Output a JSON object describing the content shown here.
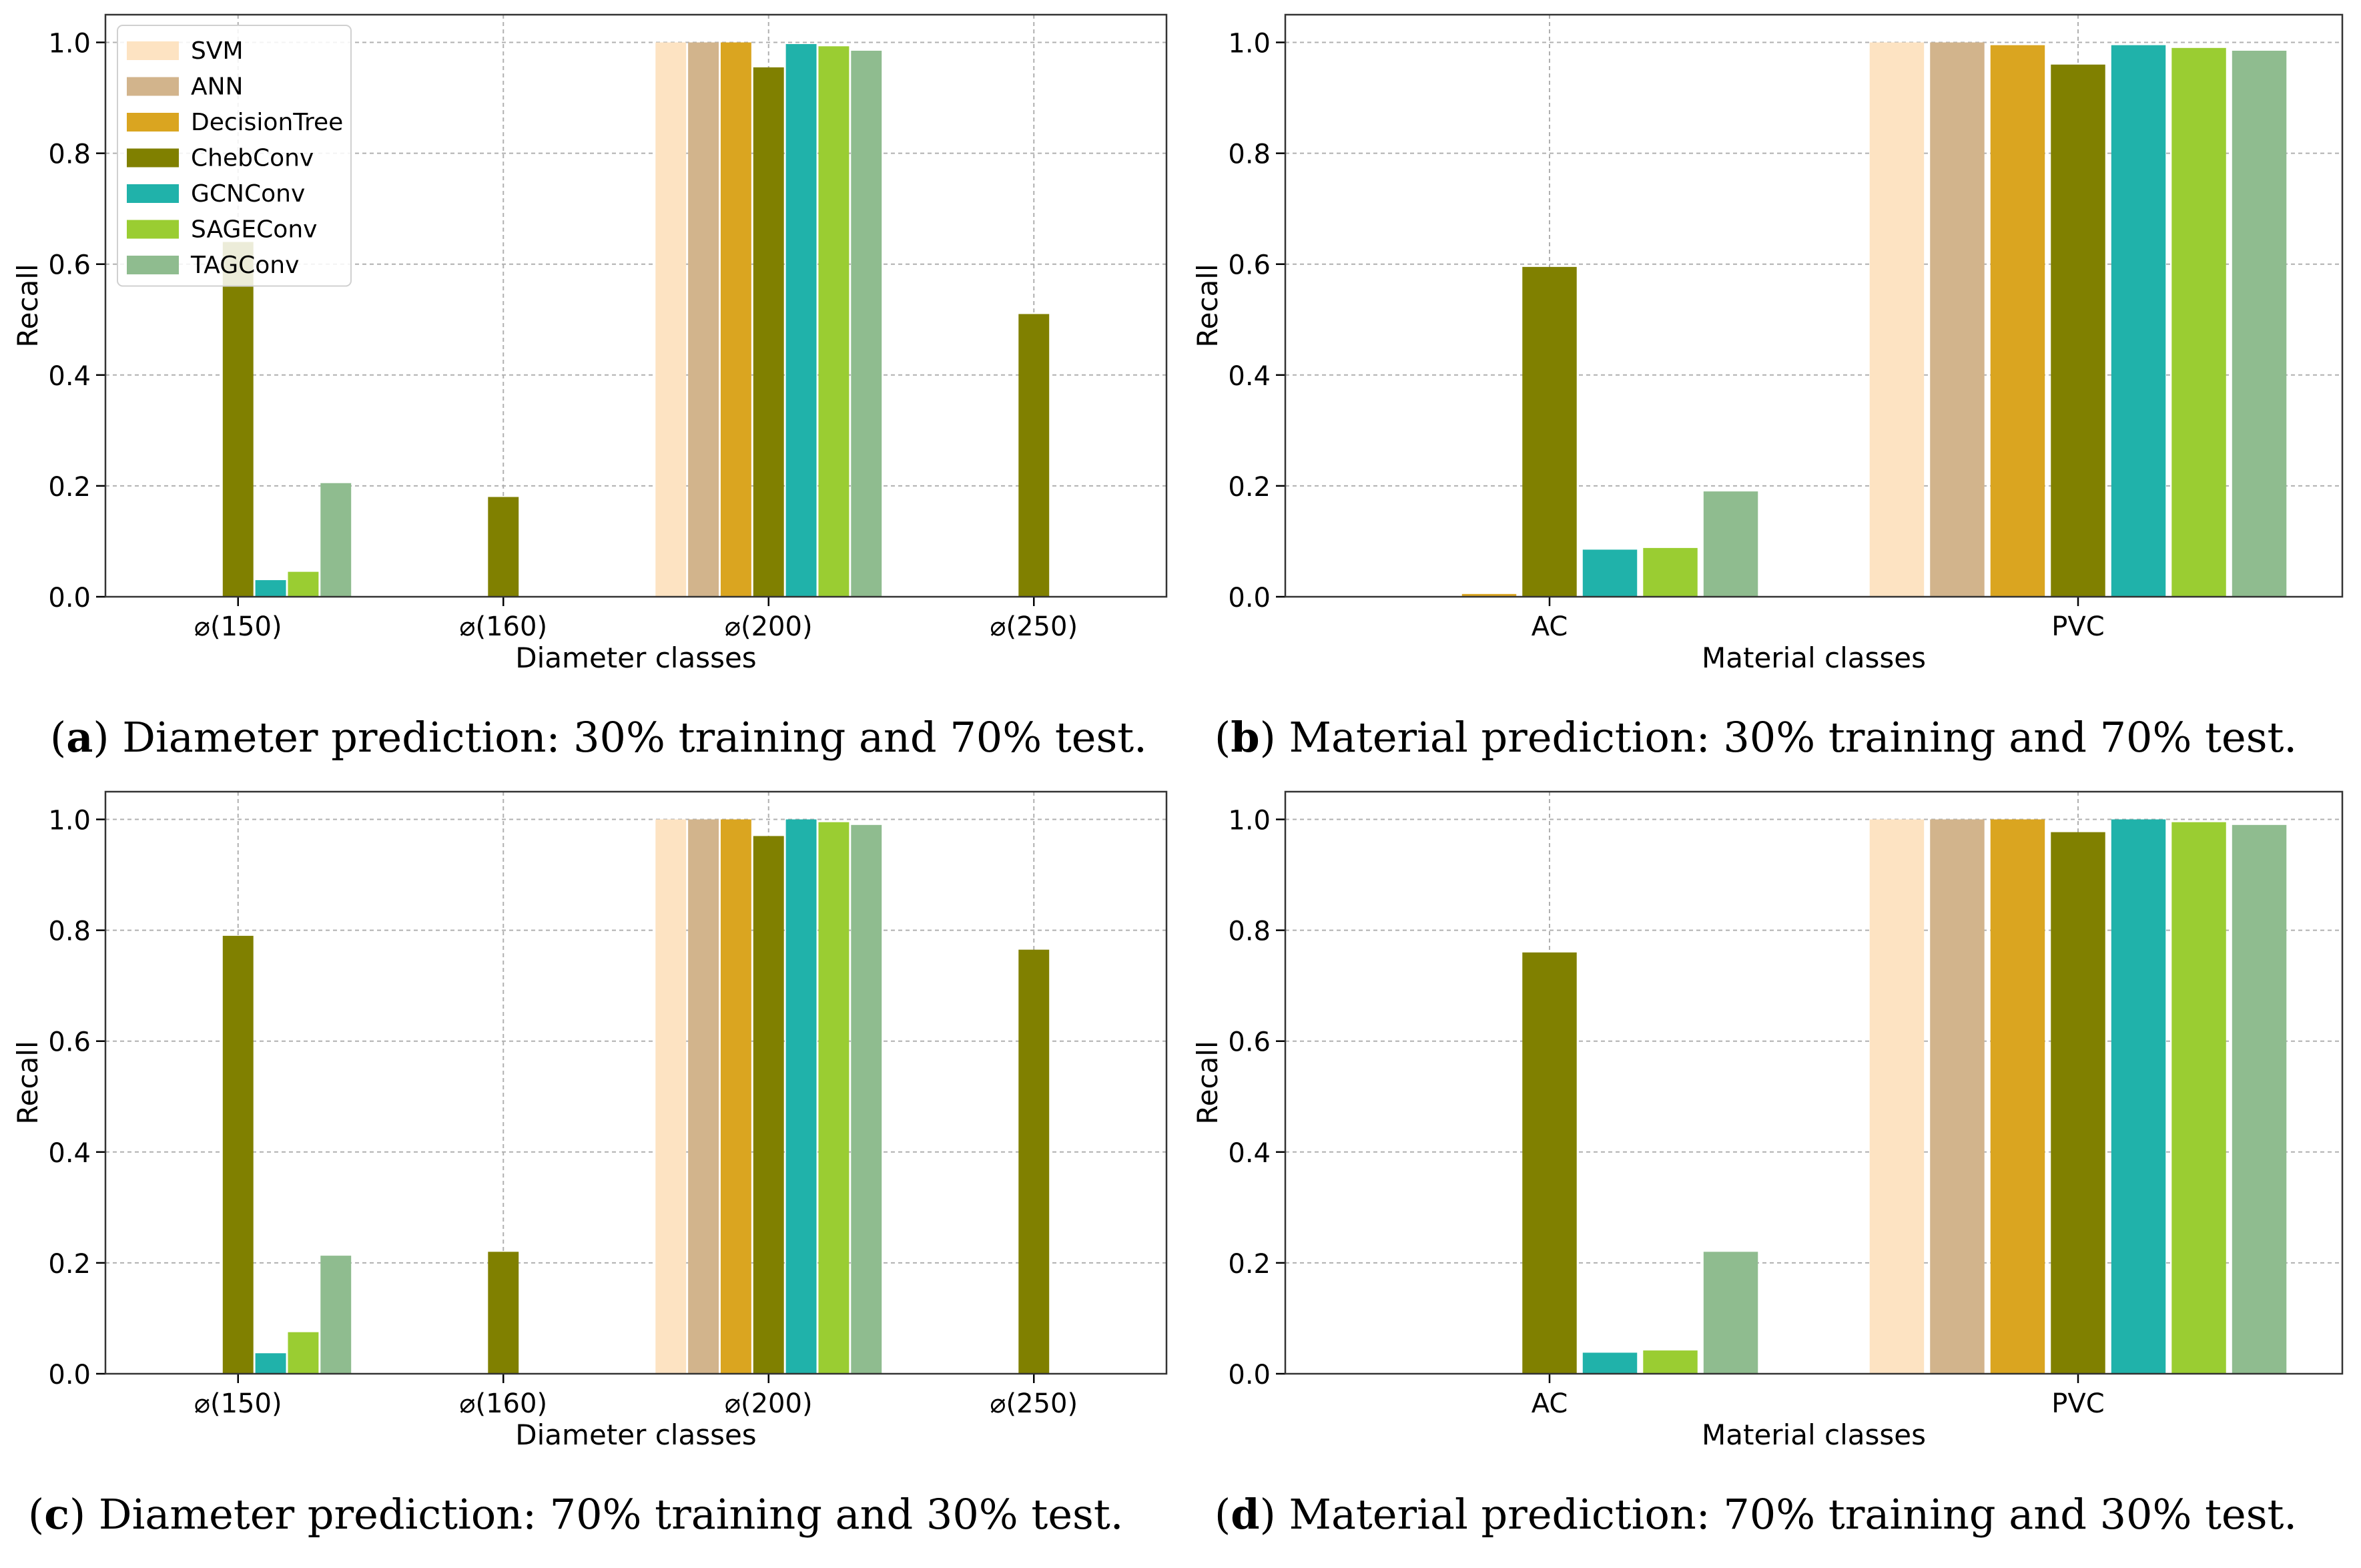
{
  "figures": [
    {
      "caption": {
        "label": "a",
        "text": "Diameter prediction: 30% training and 70% test."
      },
      "chart_data": {
        "type": "bar",
        "ylabel": "Recall",
        "xlabel": "Diameter classes",
        "ylim": [
          0,
          1.05
        ],
        "yticks": [
          "0.0",
          "0.2",
          "0.4",
          "0.6",
          "0.8",
          "1.0"
        ],
        "categories": [
          "⌀(150)",
          "⌀(160)",
          "⌀(200)",
          "⌀(250)"
        ],
        "series": [
          {
            "name": "SVM",
            "values": [
              0,
              0,
              1.0,
              0
            ]
          },
          {
            "name": "ANN",
            "values": [
              0,
              0,
              1.0,
              0
            ]
          },
          {
            "name": "DecisionTree",
            "values": [
              0,
              0,
              1.0,
              0
            ]
          },
          {
            "name": "ChebConv",
            "values": [
              0.64,
              0.18,
              0.955,
              0.51
            ]
          },
          {
            "name": "GCNConv",
            "values": [
              0.03,
              0,
              0.997,
              0
            ]
          },
          {
            "name": "SAGEConv",
            "values": [
              0.045,
              0,
              0.993,
              0
            ]
          },
          {
            "name": "TAGConv",
            "values": [
              0.205,
              0,
              0.985,
              0
            ]
          }
        ],
        "legend": "top-left"
      }
    },
    {
      "caption": {
        "label": "b",
        "text": "Material prediction: 30% training and 70% test."
      },
      "chart_data": {
        "type": "bar",
        "ylabel": "Recall",
        "xlabel": "Material classes",
        "ylim": [
          0,
          1.05
        ],
        "yticks": [
          "0.0",
          "0.2",
          "0.4",
          "0.6",
          "0.8",
          "1.0"
        ],
        "categories": [
          "AC",
          "PVC"
        ],
        "series": [
          {
            "name": "SVM",
            "values": [
              0,
              1.0
            ]
          },
          {
            "name": "ANN",
            "values": [
              0,
              1.0
            ]
          },
          {
            "name": "DecisionTree",
            "values": [
              0.005,
              0.995
            ]
          },
          {
            "name": "ChebConv",
            "values": [
              0.595,
              0.96
            ]
          },
          {
            "name": "GCNConv",
            "values": [
              0.085,
              0.995
            ]
          },
          {
            "name": "SAGEConv",
            "values": [
              0.088,
              0.99
            ]
          },
          {
            "name": "TAGConv",
            "values": [
              0.19,
              0.985
            ]
          }
        ],
        "legend": "none"
      }
    },
    {
      "caption": {
        "label": "c",
        "text": "Diameter prediction: 70% training and 30% test."
      },
      "chart_data": {
        "type": "bar",
        "ylabel": "Recall",
        "xlabel": "Diameter classes",
        "ylim": [
          0,
          1.05
        ],
        "yticks": [
          "0.0",
          "0.2",
          "0.4",
          "0.6",
          "0.8",
          "1.0"
        ],
        "categories": [
          "⌀(150)",
          "⌀(160)",
          "⌀(200)",
          "⌀(250)"
        ],
        "series": [
          {
            "name": "SVM",
            "values": [
              0,
              0,
              1.0,
              0
            ]
          },
          {
            "name": "ANN",
            "values": [
              0,
              0,
              1.0,
              0
            ]
          },
          {
            "name": "DecisionTree",
            "values": [
              0,
              0,
              1.0,
              0
            ]
          },
          {
            "name": "ChebConv",
            "values": [
              0.79,
              0.22,
              0.97,
              0.765
            ]
          },
          {
            "name": "GCNConv",
            "values": [
              0.037,
              0,
              1.0,
              0
            ]
          },
          {
            "name": "SAGEConv",
            "values": [
              0.075,
              0,
              0.995,
              0
            ]
          },
          {
            "name": "TAGConv",
            "values": [
              0.213,
              0,
              0.99,
              0
            ]
          }
        ],
        "legend": "none"
      }
    },
    {
      "caption": {
        "label": "d",
        "text": "Material prediction: 70% training and 30% test."
      },
      "chart_data": {
        "type": "bar",
        "ylabel": "Recall",
        "xlabel": "Material classes",
        "ylim": [
          0,
          1.05
        ],
        "yticks": [
          "0.0",
          "0.2",
          "0.4",
          "0.6",
          "0.8",
          "1.0"
        ],
        "categories": [
          "AC",
          "PVC"
        ],
        "series": [
          {
            "name": "SVM",
            "values": [
              0,
              1.0
            ]
          },
          {
            "name": "ANN",
            "values": [
              0,
              1.0
            ]
          },
          {
            "name": "DecisionTree",
            "values": [
              0,
              1.0
            ]
          },
          {
            "name": "ChebConv",
            "values": [
              0.76,
              0.977
            ]
          },
          {
            "name": "GCNConv",
            "values": [
              0.038,
              1.0
            ]
          },
          {
            "name": "SAGEConv",
            "values": [
              0.042,
              0.995
            ]
          },
          {
            "name": "TAGConv",
            "values": [
              0.22,
              0.99
            ]
          }
        ],
        "legend": "none"
      }
    }
  ],
  "series_colors": {
    "SVM": "#FDE3C2",
    "ANN": "#D2B48C",
    "DecisionTree": "#DAA520",
    "ChebConv": "#808000",
    "GCNConv": "#20B2AA",
    "SAGEConv": "#9ACD32",
    "TAGConv": "#8FBC8F"
  }
}
